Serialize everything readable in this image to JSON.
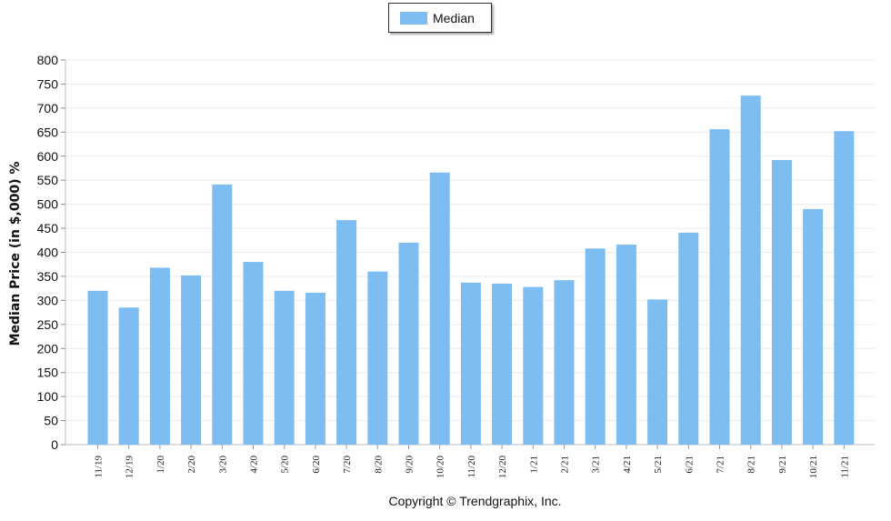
{
  "chart_data": {
    "type": "bar",
    "categories": [
      "11/19",
      "12/19",
      "1/20",
      "2/20",
      "3/20",
      "4/20",
      "5/20",
      "6/20",
      "7/20",
      "8/20",
      "9/20",
      "10/20",
      "11/20",
      "12/20",
      "1/21",
      "2/21",
      "3/21",
      "4/21",
      "5/21",
      "6/21",
      "7/21",
      "8/21",
      "9/21",
      "10/21",
      "11/21"
    ],
    "series": [
      {
        "name": "Median",
        "values": [
          320,
          285,
          368,
          352,
          541,
          380,
          320,
          316,
          467,
          360,
          420,
          566,
          337,
          335,
          328,
          342,
          408,
          416,
          302,
          441,
          656,
          726,
          592,
          490,
          652
        ]
      }
    ],
    "ylabel": "Median Price (in $,000) %",
    "xlabel": "",
    "ylim": [
      0,
      800
    ],
    "yticks": [
      0,
      50,
      100,
      150,
      200,
      250,
      300,
      350,
      400,
      450,
      500,
      550,
      600,
      650,
      700,
      750,
      800
    ],
    "grid": true,
    "legend": "top-center",
    "bar_color": "#7dbdf2",
    "footer": "Copyright © Trendgraphix, Inc."
  }
}
